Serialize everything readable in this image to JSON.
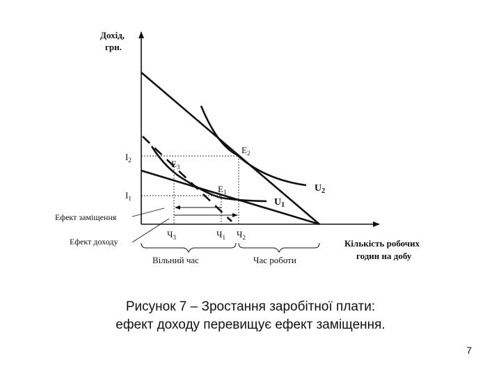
{
  "diagram": {
    "y_axis_label_line1": "Дохід,",
    "y_axis_label_line2": "грн.",
    "x_axis_label_line1": "Кількість робочих",
    "x_axis_label_line2": "годин на добу",
    "tick_I2": "I",
    "tick_I2_sub": "2",
    "tick_I1": "I",
    "tick_I1_sub": "1",
    "point_E2": "E",
    "point_E2_sub": "2",
    "point_E3": "E",
    "point_E3_sub": "3",
    "point_E1": "E",
    "point_E1_sub": "1",
    "curve_U2": "U",
    "curve_U2_sub": "2",
    "curve_U1": "U",
    "curve_U1_sub": "1",
    "tick_H3": "Ч",
    "tick_H3_sub": "3",
    "tick_H1": "Ч",
    "tick_H1_sub": "1",
    "tick_H2": "Ч",
    "tick_H2_sub": "2",
    "substitution_effect": "Ефект заміщення",
    "income_effect": "Ефект доходу",
    "free_time": "Вільний час",
    "work_time": "Час роботи"
  },
  "caption": {
    "line1": "Рисунок 7 – Зростання заробітної плати:",
    "line2": "ефект доходу перевищує ефект заміщення."
  },
  "page_number": "7"
}
